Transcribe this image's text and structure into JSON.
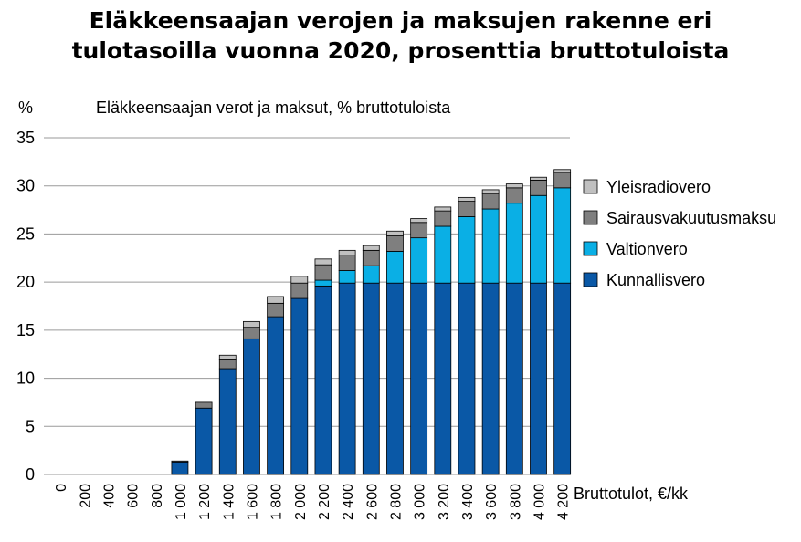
{
  "chart_data": {
    "type": "bar",
    "stacked": true,
    "title_lines": [
      "Eläkkeensaajan verojen ja maksujen rakenne eri",
      "tulotasoilla vuonna 2020, prosenttia bruttotuloista"
    ],
    "subtitle": "Eläkkeensaajan verot ja maksut, % bruttotuloista",
    "ylabel": "%",
    "xlabel": "Bruttotulot, €/kk",
    "ylim": [
      0,
      35
    ],
    "yticks": [
      "0",
      "5",
      "10",
      "15",
      "20",
      "25",
      "30",
      "35"
    ],
    "grid": true,
    "legend_position": "right",
    "categories": [
      "0",
      "200",
      "400",
      "600",
      "800",
      "1 000",
      "1 200",
      "1 400",
      "1 600",
      "1 800",
      "2 000",
      "2 200",
      "2 400",
      "2 600",
      "2 800",
      "3 000",
      "3 200",
      "3 400",
      "3 600",
      "3 800",
      "4 000",
      "4 200"
    ],
    "series": [
      {
        "name": "Kunnallisvero",
        "color": "#0a58a6",
        "values": [
          0,
          0,
          0,
          0,
          0,
          1.3,
          6.9,
          11.0,
          14.1,
          16.4,
          18.3,
          19.6,
          19.9,
          19.9,
          19.9,
          19.9,
          19.9,
          19.9,
          19.9,
          19.9,
          19.9,
          19.9
        ]
      },
      {
        "name": "Valtionvero",
        "color": "#0aafe5",
        "values": [
          0,
          0,
          0,
          0,
          0,
          0,
          0,
          0,
          0,
          0,
          0,
          0.6,
          1.3,
          1.8,
          3.3,
          4.7,
          5.9,
          6.9,
          7.7,
          8.3,
          9.1,
          9.9
        ]
      },
      {
        "name": "Sairausvakuutusmaksu",
        "color": "#7f7f7f",
        "values": [
          0,
          0,
          0,
          0,
          0,
          0.1,
          0.6,
          1.0,
          1.2,
          1.4,
          1.6,
          1.6,
          1.6,
          1.6,
          1.6,
          1.6,
          1.6,
          1.6,
          1.6,
          1.6,
          1.6,
          1.6
        ]
      },
      {
        "name": "Yleisradiovero",
        "color": "#c0c0c0",
        "values": [
          0,
          0,
          0,
          0,
          0,
          0,
          0,
          0.4,
          0.6,
          0.7,
          0.7,
          0.6,
          0.5,
          0.5,
          0.5,
          0.4,
          0.4,
          0.4,
          0.4,
          0.4,
          0.3,
          0.3
        ]
      }
    ]
  }
}
